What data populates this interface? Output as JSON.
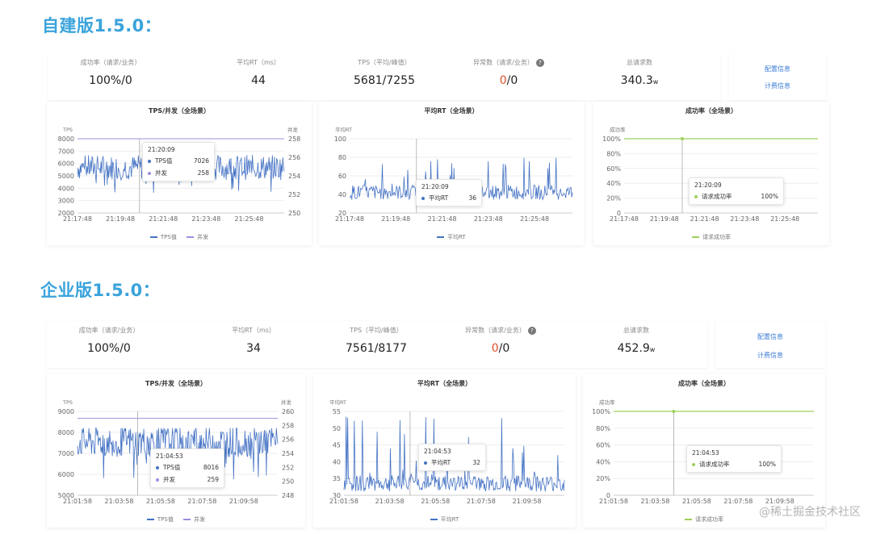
{
  "colors": {
    "title": "#3aa3dc",
    "tps": "#4472c4",
    "concurrency": "#9b8fe0",
    "success": "#9ed05a",
    "zero_red": "#e0502a",
    "link": "#3a7bd5"
  },
  "sections": [
    {
      "title": "自建版1.5.0：",
      "stats": [
        {
          "label": "成功率（请求/业务）",
          "value": "100%/0"
        },
        {
          "label": "平均RT（ms）",
          "value": "44"
        },
        {
          "label": "TPS（平均/峰值）",
          "value": "5681/7255"
        },
        {
          "label": "异常数（请求/业务）",
          "value_red": "0",
          "value_rest": "/0",
          "has_help": true
        },
        {
          "label": "总请求数",
          "value": "340.3",
          "value_sub": "w"
        }
      ],
      "links": [
        "配置信息",
        "计费信息"
      ],
      "panels": {
        "tps": {
          "title": "TPS/并发（全场景）",
          "left_unit": "TPS",
          "right_unit": "并发",
          "y_ticks": [
            "8000",
            "7000",
            "6000",
            "5000",
            "4000",
            "3000",
            "2000"
          ],
          "y2_ticks": [
            "258",
            "256",
            "254",
            "252",
            "250"
          ],
          "x_ticks": [
            "21:17:48",
            "21:19:48",
            "21:21:48",
            "21:23:48",
            "21:25:48"
          ],
          "tooltip": {
            "time": "21:20:09",
            "rows": [
              {
                "name": "TPS值",
                "value": "7026"
              },
              {
                "name": "并发",
                "value": "258"
              }
            ]
          },
          "legend": [
            "TPS值",
            "并发"
          ]
        },
        "rt": {
          "title": "平均RT（全场景）",
          "left_unit": "平均RT",
          "y_ticks": [
            "100",
            "80",
            "60",
            "40",
            "20"
          ],
          "x_ticks": [
            "21:17:48",
            "21:19:48",
            "21:21:48",
            "21:23:48",
            "21:25:48"
          ],
          "tooltip": {
            "time": "21:20:09",
            "rows": [
              {
                "name": "平均RT",
                "value": "36"
              }
            ]
          },
          "legend": [
            "平均RT"
          ]
        },
        "success": {
          "title": "成功率（全场景）",
          "left_unit": "成功率",
          "y_ticks": [
            "100%",
            "80%",
            "60%",
            "40%",
            "20%",
            "0"
          ],
          "x_ticks": [
            "21:17:48",
            "21:19:48",
            "21:21:48",
            "21:23:48",
            "21:25:48"
          ],
          "tooltip": {
            "time": "21:20:09",
            "rows": [
              {
                "name": "请求成功率",
                "value": "100%"
              }
            ]
          },
          "legend": [
            "请求成功率"
          ]
        }
      }
    },
    {
      "title": "企业版1.5.0：",
      "stats": [
        {
          "label": "成功率（请求/业务）",
          "value": "100%/0"
        },
        {
          "label": "平均RT（ms）",
          "value": "34"
        },
        {
          "label": "TPS（平均/峰值）",
          "value": "7561/8177"
        },
        {
          "label": "异常数（请求/业务）",
          "value_red": "0",
          "value_rest": "/0",
          "has_help": true
        },
        {
          "label": "总请求数",
          "value": "452.9",
          "value_sub": "w"
        }
      ],
      "links": [
        "配置信息",
        "计费信息"
      ],
      "panels": {
        "tps": {
          "title": "TPS/并发（全场景）",
          "left_unit": "TPS",
          "right_unit": "并发",
          "y_ticks": [
            "9000",
            "8000",
            "7000",
            "6000",
            "5000"
          ],
          "y2_ticks": [
            "260",
            "258",
            "256",
            "254",
            "252",
            "250",
            "248"
          ],
          "x_ticks": [
            "21:01:58",
            "21:03:58",
            "21:05:58",
            "21:07:58",
            "21:09:58"
          ],
          "tooltip": {
            "time": "21:04:53",
            "rows": [
              {
                "name": "TPS值",
                "value": "8016"
              },
              {
                "name": "并发",
                "value": "259"
              }
            ]
          },
          "legend": [
            "TPS值",
            "并发"
          ]
        },
        "rt": {
          "title": "平均RT（全场景）",
          "left_unit": "平均RT",
          "y_ticks": [
            "55",
            "50",
            "45",
            "40",
            "35",
            "30"
          ],
          "x_ticks": [
            "21:01:58",
            "21:03:58",
            "21:05:58",
            "21:07:58",
            "21:09:58"
          ],
          "tooltip": {
            "time": "21:04:53",
            "rows": [
              {
                "name": "平均RT",
                "value": "32"
              }
            ]
          },
          "legend": [
            "平均RT"
          ]
        },
        "success": {
          "title": "成功率（全场景）",
          "left_unit": "成功率",
          "y_ticks": [
            "100%",
            "80%",
            "60%",
            "40%",
            "20%",
            "0"
          ],
          "x_ticks": [
            "21:01:58",
            "21:03:58",
            "21:05:58",
            "21:07:58",
            "21:09:58"
          ],
          "tooltip": {
            "time": "21:04:53",
            "rows": [
              {
                "name": "请求成功率",
                "value": "100%"
              }
            ]
          },
          "legend": [
            "请求成功率"
          ]
        }
      }
    }
  ],
  "watermark": "@稀土掘金技术社区",
  "chart_data": [
    {
      "type": "line",
      "title": "TPS/并发（全场景）",
      "section": "自建版1.5.0",
      "x_range": [
        "21:17:48",
        "21:27:30"
      ],
      "ylim": [
        2000,
        8000
      ],
      "y2lim": [
        250,
        258
      ],
      "series": [
        {
          "name": "TPS值",
          "approx_range": [
            3500,
            7200
          ],
          "mean": 5681
        },
        {
          "name": "并发",
          "value_constant": 258
        }
      ]
    },
    {
      "type": "line",
      "title": "平均RT（全场景）",
      "section": "自建版1.5.0",
      "x_range": [
        "21:17:48",
        "21:27:30"
      ],
      "ylim": [
        20,
        100
      ],
      "series": [
        {
          "name": "平均RT",
          "approx_range": [
            34,
            80
          ],
          "mean": 44
        }
      ]
    },
    {
      "type": "line",
      "title": "成功率（全场景）",
      "section": "自建版1.5.0",
      "x_range": [
        "21:17:48",
        "21:27:30"
      ],
      "ylim": [
        0,
        100
      ],
      "series": [
        {
          "name": "请求成功率",
          "value_constant": 100
        }
      ]
    },
    {
      "type": "line",
      "title": "TPS/并发（全场景）",
      "section": "企业版1.5.0",
      "x_range": [
        "21:01:58",
        "21:11:40"
      ],
      "ylim": [
        5000,
        9000
      ],
      "y2lim": [
        248,
        260
      ],
      "series": [
        {
          "name": "TPS值",
          "approx_range": [
            5500,
            8200
          ],
          "mean": 7561
        },
        {
          "name": "并发",
          "value_constant": 259
        }
      ]
    },
    {
      "type": "line",
      "title": "平均RT（全场景）",
      "section": "企业版1.5.0",
      "x_range": [
        "21:01:58",
        "21:11:40"
      ],
      "ylim": [
        30,
        55
      ],
      "series": [
        {
          "name": "平均RT",
          "approx_range": [
            31,
            54
          ],
          "mean": 34
        }
      ]
    },
    {
      "type": "line",
      "title": "成功率（全场景）",
      "section": "企业版1.5.0",
      "x_range": [
        "21:01:58",
        "21:11:40"
      ],
      "ylim": [
        0,
        100
      ],
      "series": [
        {
          "name": "请求成功率",
          "value_constant": 100
        }
      ]
    }
  ]
}
